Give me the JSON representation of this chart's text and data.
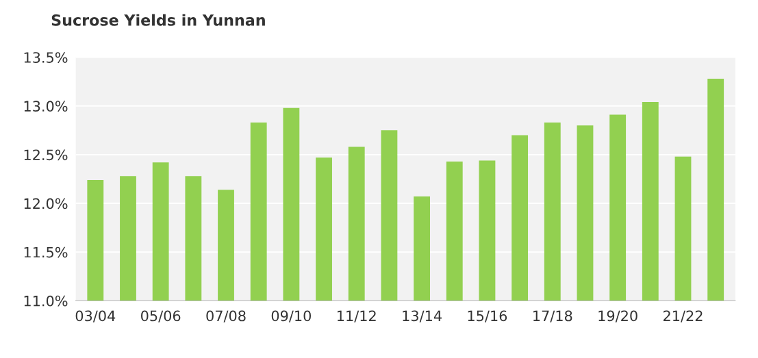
{
  "chart_data": {
    "type": "bar",
    "title": "Sucrose Yields in Yunnan",
    "categories": [
      "03/04",
      null,
      "05/06",
      null,
      "07/08",
      null,
      "09/10",
      null,
      "11/12",
      null,
      "13/14",
      null,
      "15/16",
      null,
      "17/18",
      null,
      "19/20",
      null,
      "21/22",
      null
    ],
    "values": [
      12.24,
      12.28,
      12.42,
      12.28,
      12.14,
      12.83,
      12.98,
      12.47,
      12.58,
      12.75,
      12.07,
      12.43,
      12.44,
      12.7,
      12.83,
      12.8,
      12.91,
      13.04,
      12.48,
      13.28
    ],
    "color": "#92d050",
    "ylim": [
      11.0,
      13.5
    ],
    "yticks": [
      {
        "value": 11.0,
        "label": "11.0%"
      },
      {
        "value": 11.5,
        "label": "11.5%"
      },
      {
        "value": 12.0,
        "label": "12.0%"
      },
      {
        "value": 12.5,
        "label": "12.5%"
      },
      {
        "value": 13.0,
        "label": "13.0%"
      },
      {
        "value": 13.5,
        "label": "13.5%"
      }
    ],
    "grid": "y"
  }
}
